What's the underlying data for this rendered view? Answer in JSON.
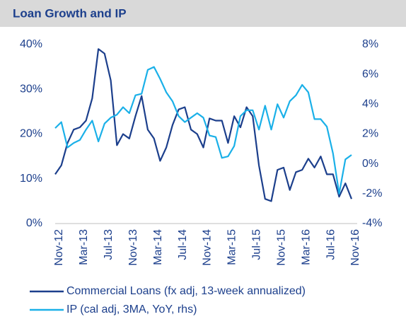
{
  "chart_data": {
    "type": "line",
    "title": "Loan Growth and IP",
    "categories": [
      "Nov-12",
      null,
      null,
      null,
      "Mar-13",
      null,
      null,
      null,
      "Jul-13",
      null,
      null,
      null,
      "Nov-13",
      null,
      null,
      null,
      "Mar-14",
      null,
      null,
      null,
      "Jul-14",
      null,
      null,
      null,
      "Nov-14",
      null,
      null,
      null,
      "Mar-15",
      null,
      null,
      null,
      "Jul-15",
      null,
      null,
      null,
      "Nov-15",
      null,
      null,
      null,
      "Mar-16",
      null,
      null,
      null,
      "Jul-16",
      null,
      null,
      null,
      "Nov-16"
    ],
    "series": [
      {
        "name": "Commercial Loans (fx adj, 13-week annualized)",
        "color": "#1c3f8c",
        "axis": "y",
        "values": [
          11,
          13,
          18,
          21,
          21.5,
          23,
          28,
          39,
          38,
          32,
          17.5,
          20,
          19,
          24,
          28.5,
          21,
          19,
          14,
          17,
          22,
          25.5,
          26,
          21,
          20,
          17,
          23.5,
          23,
          23,
          18,
          24,
          21.5,
          26,
          24,
          13,
          5.5,
          5,
          12,
          12.5,
          7.5,
          11.5,
          12,
          14.5,
          12.5,
          15,
          11,
          11,
          6,
          9,
          5.5
        ]
      },
      {
        "name": "IP (cal adj, 3MA, YoY, rhs)",
        "color": "#1ab0e8",
        "axis": "y2",
        "values": [
          2.4,
          2.8,
          1.1,
          1.4,
          1.6,
          2.3,
          2.9,
          1.5,
          2.7,
          3.1,
          3.3,
          3.8,
          3.4,
          4.6,
          4.7,
          6.3,
          6.5,
          5.7,
          4.8,
          4.2,
          3.2,
          2.8,
          3.1,
          3.4,
          3.1,
          1.9,
          1.8,
          0.4,
          0.5,
          1.2,
          3.2,
          3.6,
          3.6,
          2.3,
          3.9,
          2.3,
          4.0,
          3.1,
          4.2,
          4.6,
          5.3,
          4.8,
          3.0,
          3.0,
          2.5,
          0.7,
          -2.0,
          0.3,
          0.6
        ]
      }
    ],
    "ylim": [
      0,
      40
    ],
    "yticks": [
      {
        "value": 0,
        "label": "0%"
      },
      {
        "value": 10,
        "label": "10%"
      },
      {
        "value": 20,
        "label": "20%"
      },
      {
        "value": 30,
        "label": "30%"
      },
      {
        "value": 40,
        "label": "40%"
      }
    ],
    "y2lim": [
      -4,
      8
    ],
    "y2ticks": [
      {
        "value": -4,
        "label": "-4%"
      },
      {
        "value": -2,
        "label": "-2%"
      },
      {
        "value": 0,
        "label": "0%"
      },
      {
        "value": 2,
        "label": "2%"
      },
      {
        "value": 4,
        "label": "4%"
      },
      {
        "value": 6,
        "label": "6%"
      },
      {
        "value": 8,
        "label": "8%"
      }
    ],
    "grid": false,
    "legend": "bottom"
  }
}
